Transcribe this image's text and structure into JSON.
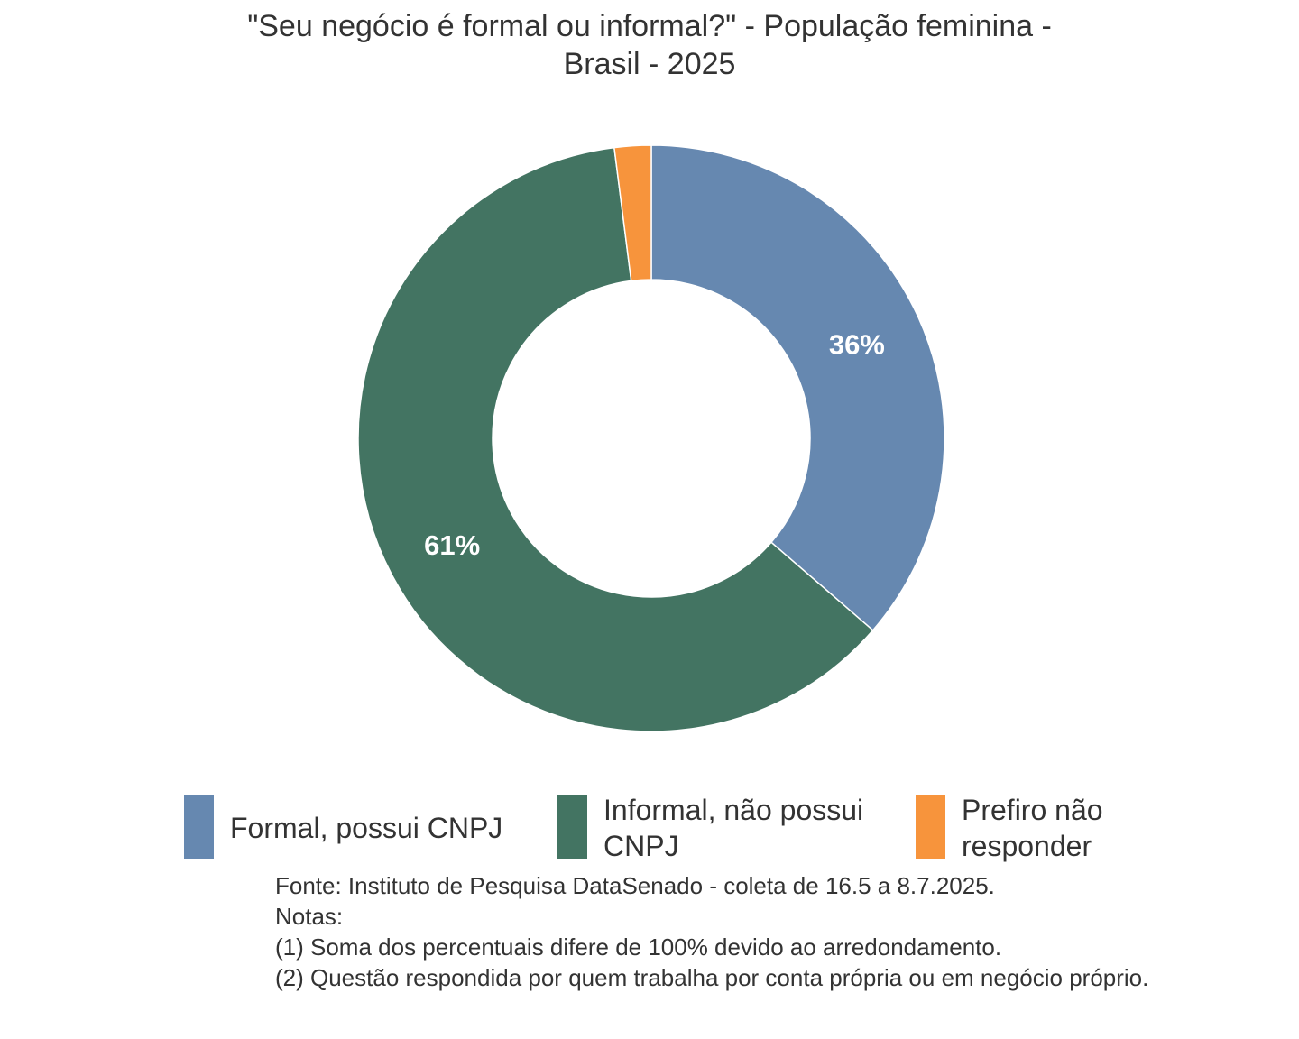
{
  "chart_data": {
    "type": "pie",
    "variant": "donut",
    "title_lines": [
      "\"Seu negócio é formal ou informal?\" - População feminina -",
      "Brasil - 2025"
    ],
    "categories": [
      "Formal, possui CNPJ",
      "Informal, não possui CNPJ",
      "Prefiro não responder"
    ],
    "legend_lines": [
      [
        "Formal, possui CNPJ"
      ],
      [
        "Informal, não possui",
        "CNPJ"
      ],
      [
        "Prefiro não",
        "responder"
      ]
    ],
    "values": [
      36,
      61,
      2
    ],
    "labels": [
      "36%",
      "61%",
      ""
    ],
    "colors": [
      "#6688b0",
      "#437462",
      "#f7943c"
    ],
    "legend_position": "bottom"
  },
  "notes": {
    "source": "Fonte: Instituto de Pesquisa DataSenado - coleta de 16.5 a 8.7.2025.",
    "heading": "Notas:",
    "note1": "(1) Soma dos percentuais difere de 100% devido ao arredondamento.",
    "note2": "(2) Questão respondida por quem trabalha por conta própria ou em negócio próprio."
  }
}
